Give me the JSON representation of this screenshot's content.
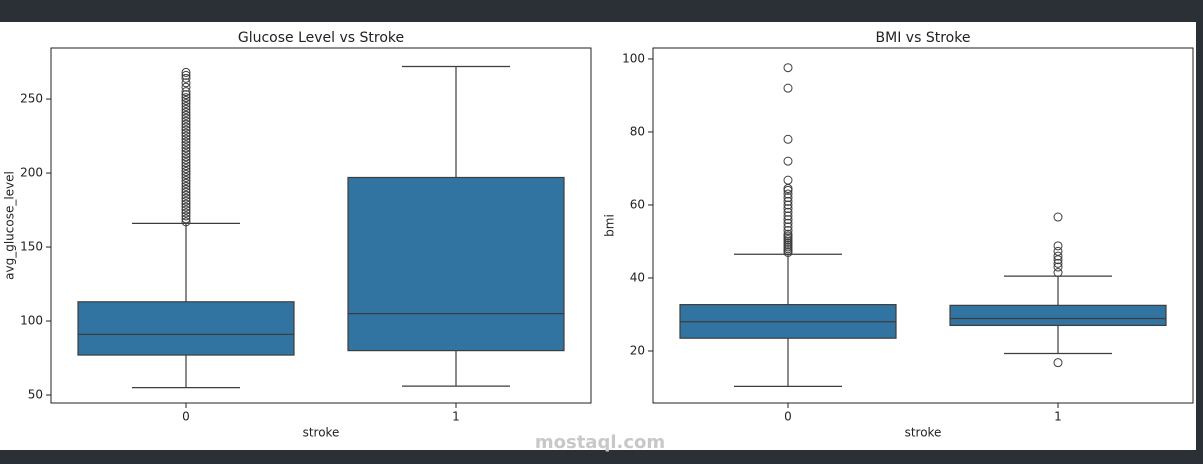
{
  "chart_data": [
    {
      "type": "box",
      "title": "Glucose Level vs Stroke",
      "x_label": "stroke",
      "y_label": "avg_glucose_level",
      "categories": [
        "0",
        "1"
      ],
      "color": "#3274a1",
      "boxes": [
        {
          "min": 55,
          "q1": 77,
          "median": 91,
          "q3": 113,
          "max": 166,
          "outliers": [
            167,
            169,
            171,
            173,
            175,
            177,
            179,
            181,
            183,
            185,
            187,
            189,
            191,
            193,
            195,
            197,
            199,
            201,
            203,
            205,
            207,
            209,
            211,
            213,
            215,
            217,
            219,
            221,
            223,
            225,
            227,
            229,
            231,
            233,
            235,
            237,
            239,
            241,
            243,
            245,
            247,
            249,
            251,
            253,
            255,
            258,
            261,
            264,
            266,
            268
          ]
        },
        {
          "min": 56,
          "q1": 80,
          "median": 105,
          "q3": 197,
          "max": 272,
          "outliers": []
        }
      ],
      "ylim": [
        44.6,
        284.5
      ],
      "yticks": [
        50,
        100,
        150,
        200,
        250
      ]
    },
    {
      "type": "box",
      "title": "BMI vs Stroke",
      "x_label": "stroke",
      "y_label": "bmi",
      "categories": [
        "0",
        "1"
      ],
      "color": "#3274a1",
      "boxes": [
        {
          "min": 10.3,
          "q1": 23.5,
          "median": 28,
          "q3": 32.7,
          "max": 46.5,
          "outliers": [
            47,
            47.5,
            48,
            48.5,
            49,
            49.5,
            50,
            50.5,
            51,
            51.5,
            52,
            53,
            54,
            55,
            56,
            57,
            58,
            59,
            60,
            61,
            62,
            63,
            64,
            64.5,
            66.8,
            72,
            78,
            92,
            97.6
          ]
        },
        {
          "min": 19.3,
          "q1": 27,
          "median": 28.9,
          "q3": 32.5,
          "max": 40.5,
          "outliers": [
            16.8,
            41.5,
            43,
            44,
            45,
            46,
            47.3,
            48.8,
            56.7
          ]
        }
      ],
      "ylim": [
        5.75,
        103
      ],
      "yticks": [
        20,
        40,
        60,
        80,
        100
      ]
    }
  ],
  "watermark": "mostaql.com"
}
